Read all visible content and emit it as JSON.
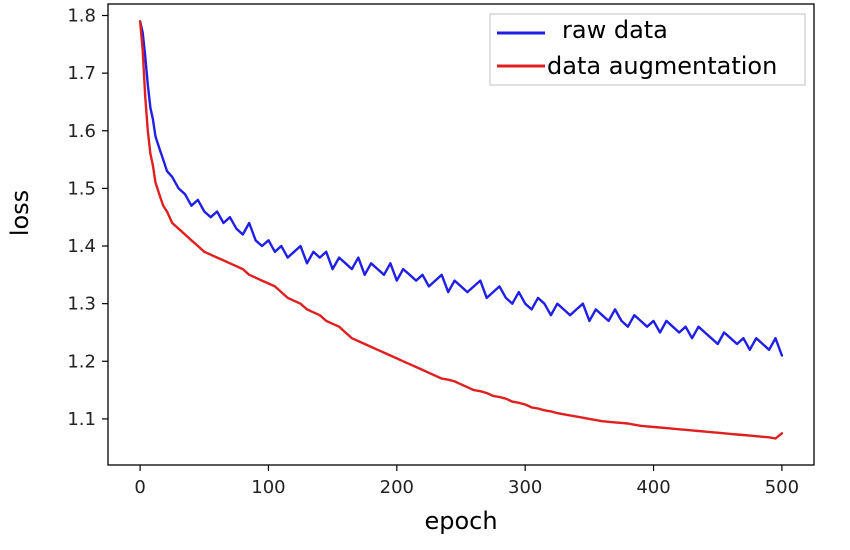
{
  "chart_data": {
    "type": "line",
    "title": "",
    "xlabel": "epoch",
    "ylabel": "loss",
    "xlim": [
      -25,
      525
    ],
    "ylim": [
      1.02,
      1.82
    ],
    "xticks": [
      0,
      100,
      200,
      300,
      400,
      500
    ],
    "yticks": [
      1.1,
      1.2,
      1.3,
      1.4,
      1.5,
      1.6,
      1.7,
      1.8
    ],
    "grid": false,
    "legend_position": "top-right",
    "series": [
      {
        "name": "raw data",
        "color": "#1f1fe6",
        "x": [
          0,
          2,
          4,
          6,
          8,
          10,
          12,
          15,
          18,
          21,
          25,
          30,
          35,
          40,
          45,
          50,
          55,
          60,
          65,
          70,
          75,
          80,
          85,
          90,
          95,
          100,
          105,
          110,
          115,
          120,
          125,
          130,
          135,
          140,
          145,
          150,
          155,
          160,
          165,
          170,
          175,
          180,
          185,
          190,
          195,
          200,
          205,
          210,
          215,
          220,
          225,
          230,
          235,
          240,
          245,
          250,
          255,
          260,
          265,
          270,
          275,
          280,
          285,
          290,
          295,
          300,
          305,
          310,
          315,
          320,
          325,
          330,
          335,
          340,
          345,
          350,
          355,
          360,
          365,
          370,
          375,
          380,
          385,
          390,
          395,
          400,
          405,
          410,
          415,
          420,
          425,
          430,
          435,
          440,
          445,
          450,
          455,
          460,
          465,
          470,
          475,
          480,
          485,
          490,
          495,
          500
        ],
        "values": [
          1.79,
          1.77,
          1.73,
          1.68,
          1.64,
          1.62,
          1.59,
          1.57,
          1.55,
          1.53,
          1.52,
          1.5,
          1.49,
          1.47,
          1.48,
          1.46,
          1.45,
          1.46,
          1.44,
          1.45,
          1.43,
          1.42,
          1.44,
          1.41,
          1.4,
          1.41,
          1.39,
          1.4,
          1.38,
          1.39,
          1.4,
          1.37,
          1.39,
          1.38,
          1.39,
          1.36,
          1.38,
          1.37,
          1.36,
          1.38,
          1.35,
          1.37,
          1.36,
          1.35,
          1.37,
          1.34,
          1.36,
          1.35,
          1.34,
          1.35,
          1.33,
          1.34,
          1.35,
          1.32,
          1.34,
          1.33,
          1.32,
          1.33,
          1.34,
          1.31,
          1.32,
          1.33,
          1.31,
          1.3,
          1.32,
          1.3,
          1.29,
          1.31,
          1.3,
          1.28,
          1.3,
          1.29,
          1.28,
          1.29,
          1.3,
          1.27,
          1.29,
          1.28,
          1.27,
          1.29,
          1.27,
          1.26,
          1.28,
          1.27,
          1.26,
          1.27,
          1.25,
          1.27,
          1.26,
          1.25,
          1.26,
          1.24,
          1.26,
          1.25,
          1.24,
          1.23,
          1.25,
          1.24,
          1.23,
          1.24,
          1.22,
          1.24,
          1.23,
          1.22,
          1.24,
          1.21
        ]
      },
      {
        "name": "data augmentation",
        "color": "#e02020",
        "x": [
          0,
          2,
          4,
          6,
          8,
          10,
          12,
          15,
          18,
          21,
          25,
          30,
          35,
          40,
          45,
          50,
          55,
          60,
          65,
          70,
          75,
          80,
          85,
          90,
          95,
          100,
          105,
          110,
          115,
          120,
          125,
          130,
          135,
          140,
          145,
          150,
          155,
          160,
          165,
          170,
          175,
          180,
          185,
          190,
          195,
          200,
          205,
          210,
          215,
          220,
          225,
          230,
          235,
          240,
          245,
          250,
          255,
          260,
          265,
          270,
          275,
          280,
          285,
          290,
          295,
          300,
          305,
          310,
          315,
          320,
          325,
          330,
          335,
          340,
          345,
          350,
          355,
          360,
          365,
          370,
          375,
          380,
          385,
          390,
          395,
          400,
          405,
          410,
          415,
          420,
          425,
          430,
          435,
          440,
          445,
          450,
          455,
          460,
          465,
          470,
          475,
          480,
          485,
          490,
          495,
          500
        ],
        "values": [
          1.79,
          1.74,
          1.66,
          1.6,
          1.56,
          1.54,
          1.51,
          1.49,
          1.47,
          1.46,
          1.44,
          1.43,
          1.42,
          1.41,
          1.4,
          1.39,
          1.385,
          1.38,
          1.375,
          1.37,
          1.365,
          1.36,
          1.35,
          1.345,
          1.34,
          1.335,
          1.33,
          1.32,
          1.31,
          1.305,
          1.3,
          1.29,
          1.285,
          1.28,
          1.27,
          1.265,
          1.26,
          1.25,
          1.24,
          1.235,
          1.23,
          1.225,
          1.22,
          1.215,
          1.21,
          1.205,
          1.2,
          1.195,
          1.19,
          1.185,
          1.18,
          1.175,
          1.17,
          1.168,
          1.165,
          1.16,
          1.155,
          1.15,
          1.148,
          1.145,
          1.14,
          1.138,
          1.135,
          1.13,
          1.128,
          1.125,
          1.12,
          1.118,
          1.115,
          1.113,
          1.11,
          1.108,
          1.106,
          1.104,
          1.102,
          1.1,
          1.098,
          1.096,
          1.095,
          1.094,
          1.093,
          1.092,
          1.09,
          1.088,
          1.087,
          1.086,
          1.085,
          1.084,
          1.083,
          1.082,
          1.081,
          1.08,
          1.079,
          1.078,
          1.077,
          1.076,
          1.075,
          1.074,
          1.073,
          1.072,
          1.071,
          1.07,
          1.069,
          1.068,
          1.066,
          1.075
        ]
      }
    ]
  }
}
